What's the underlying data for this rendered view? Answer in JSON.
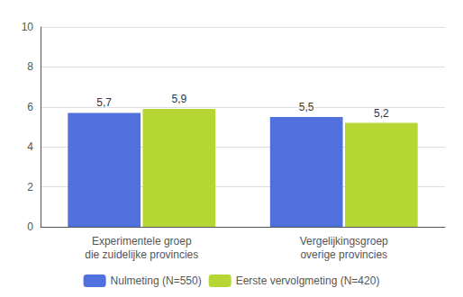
{
  "chart_data": {
    "type": "bar",
    "categories": [
      "Experimentele groep\ndie zuidelijke provincies",
      "Vergelijkingsgroep\noverige provincies"
    ],
    "series": [
      {
        "name": "Nulmeting (N=550)",
        "values": [
          5.7,
          5.5
        ],
        "value_labels": [
          "5,7",
          "5,5"
        ]
      },
      {
        "name": "Eerste vervolgmeting (N=420)",
        "values": [
          5.9,
          5.2
        ],
        "value_labels": [
          "5,9",
          "5,2"
        ]
      }
    ],
    "ylim": [
      0,
      10
    ],
    "yticks": [
      0,
      2,
      4,
      6,
      8,
      10
    ],
    "grid": true,
    "legend": "bottom",
    "data_labels": true
  }
}
